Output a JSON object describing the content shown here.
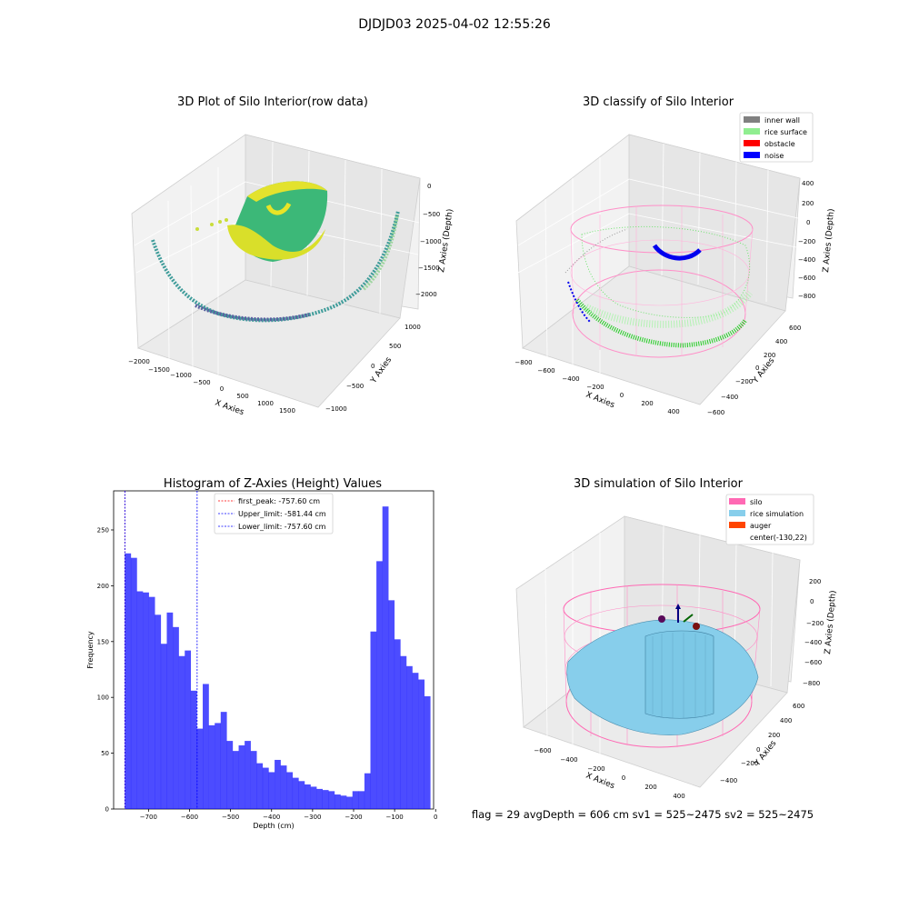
{
  "figure": {
    "suptitle": "DJDJD03 2025-04-02 12:55:26",
    "footer": "flag = 29  avgDepth = 606 cm  sv1 = 525~2475  sv2 = 525~2475"
  },
  "panels": {
    "raw": {
      "title": "3D Plot of Silo Interior(row data)",
      "xlabel": "X Axies",
      "ylabel": "Y Axies",
      "zlabel": "Z Axies (Depth)",
      "xticks": [
        "−2000",
        "−1500",
        "−1000",
        "−500",
        "0",
        "500",
        "1000",
        "1500"
      ],
      "yticks": [
        "−1000",
        "−500",
        "0",
        "500",
        "1000"
      ],
      "zticks": [
        "0",
        "−500",
        "−1000",
        "−1500",
        "−2000"
      ]
    },
    "classify": {
      "title": "3D classify of Silo Interior",
      "xlabel": "X Axies",
      "ylabel": "Y Axies",
      "zlabel": "Z Axies (Depth)",
      "xticks": [
        "−800",
        "−600",
        "−400",
        "−200",
        "0",
        "200",
        "400"
      ],
      "yticks": [
        "−600",
        "−400",
        "−200",
        "0",
        "200",
        "400",
        "600"
      ],
      "zticks": [
        "400",
        "200",
        "0",
        "−200",
        "−400",
        "−600",
        "−800"
      ],
      "legend": [
        {
          "label": "inner wall",
          "color": "#808080"
        },
        {
          "label": "rice surface",
          "color": "#90ee90"
        },
        {
          "label": "obstacle",
          "color": "#ff0000"
        },
        {
          "label": "noise",
          "color": "#0000ff"
        }
      ]
    },
    "simulation": {
      "title": "3D simulation of Silo Interior",
      "xlabel": "X Axies",
      "ylabel": "Y Axies",
      "zlabel": "Z Axies (Depth)",
      "xticks": [
        "−600",
        "−400",
        "−200",
        "0",
        "200",
        "400"
      ],
      "yticks": [
        "−400",
        "−200",
        "0",
        "200",
        "400",
        "600"
      ],
      "zticks": [
        "200",
        "0",
        "−200",
        "−400",
        "−600",
        "−800"
      ],
      "legend": [
        {
          "label": "silo",
          "color": "#ff69b4"
        },
        {
          "label": "rice simulation",
          "color": "#87ceeb"
        },
        {
          "label": "auger",
          "color": "#ff4500"
        },
        {
          "label": "center(-130,22)",
          "color": ""
        }
      ]
    }
  },
  "chart_data": [
    {
      "type": "bar",
      "title": "Histogram of Z-Axies (Height) Values",
      "xlabel": "Depth (cm)",
      "ylabel": "Frequency",
      "xlim": [
        -785,
        -5
      ],
      "ylim": [
        0,
        285
      ],
      "xticks": [
        -700,
        -600,
        -500,
        -400,
        -300,
        -200,
        -100,
        0
      ],
      "yticks": [
        0,
        50,
        100,
        150,
        200,
        250
      ],
      "bar_color": "#0000ff",
      "bin_start": -757.6,
      "bin_width": 14.6,
      "values": [
        229,
        225,
        195,
        194,
        190,
        174,
        148,
        176,
        163,
        137,
        142,
        106,
        72,
        112,
        75,
        77,
        87,
        61,
        52,
        57,
        61,
        52,
        41,
        37,
        33,
        44,
        39,
        33,
        28,
        25,
        22,
        20,
        18,
        17,
        16,
        13,
        12,
        11,
        16,
        16,
        32,
        159,
        222,
        271,
        187,
        152,
        137,
        128,
        122,
        116,
        101
      ],
      "lines": [
        {
          "label": "first_peak: -757.60 cm",
          "x": -757.6,
          "color": "#ff0000"
        },
        {
          "label": "Upper_limit: -581.44 cm",
          "x": -581.44,
          "color": "#0000ff"
        },
        {
          "label": "Lower_limit: -757.60 cm",
          "x": -757.6,
          "color": "#0000ff"
        }
      ]
    }
  ]
}
